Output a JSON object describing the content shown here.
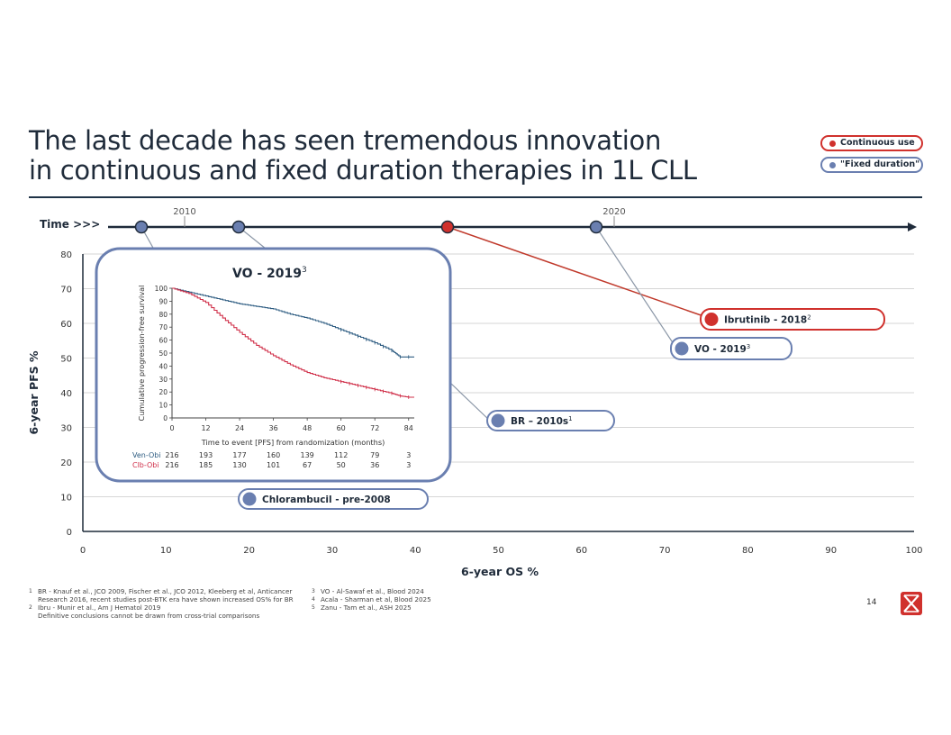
{
  "title": {
    "line1": "The last decade has seen tremendous innovation",
    "line2": "in continuous and fixed duration therapies in 1L CLL"
  },
  "legend": [
    {
      "label": "Continuous use",
      "color": "#d0312d"
    },
    {
      "label": "\"Fixed duration\"",
      "color": "#6a7fb0"
    }
  ],
  "timeline": {
    "label": "Time >>>",
    "ticks": [
      "2010",
      "2020"
    ],
    "markers": [
      {
        "name": "chlorambucil",
        "color": "#6a7fb0"
      },
      {
        "name": "br",
        "color": "#6a7fb0"
      },
      {
        "name": "ibrutinib",
        "color": "#d0312d"
      },
      {
        "name": "vo",
        "color": "#6a7fb0"
      }
    ]
  },
  "chart_data": {
    "type": "scatter",
    "xlabel": "6-year OS %",
    "ylabel": "6-year PFS %",
    "xlim": [
      0,
      100
    ],
    "ylim": [
      0,
      80
    ],
    "xticks": [
      0,
      10,
      20,
      30,
      40,
      50,
      60,
      70,
      80,
      90,
      100
    ],
    "yticks": [
      0,
      10,
      20,
      30,
      40,
      50,
      60,
      70,
      80
    ],
    "grid": true,
    "points": [
      {
        "label": "Chlorambucil - pre-2008",
        "sup": "",
        "color": "#6a7fb0",
        "x": 19.5,
        "y": 9.5
      },
      {
        "label": "BR – 2010s",
        "sup": "1",
        "color": "#6a7fb0",
        "x": 50,
        "y": 32.5
      },
      {
        "label": "VO - 2019",
        "sup": "3",
        "color": "#6a7fb0",
        "x": 71.5,
        "y": 52.5
      },
      {
        "label": "Ibrutinib - 2018",
        "sup": "2",
        "color": "#d0312d",
        "x": 75.5,
        "y": 61
      }
    ],
    "inset": {
      "title": "VO - 2019",
      "title_sup": "3",
      "ylabel": "Cumulative progression-free survival",
      "xlabel": "Time to event [PFS] from randomization (months)",
      "xticks": [
        "0",
        "12",
        "24",
        "36",
        "48",
        "60",
        "72",
        "84"
      ],
      "yticks": [
        "0",
        "10",
        "20",
        "30",
        "40",
        "50",
        "60",
        "70",
        "80",
        "90",
        "100"
      ],
      "series": [
        {
          "name": "Ven-Obi",
          "color": "#2f5d82",
          "risk": [
            "216",
            "193",
            "177",
            "160",
            "139",
            "112",
            "79",
            "3"
          ],
          "curve": [
            [
              0,
              100
            ],
            [
              6,
              97
            ],
            [
              12,
              94
            ],
            [
              18,
              91
            ],
            [
              24,
              88
            ],
            [
              30,
              86
            ],
            [
              36,
              84
            ],
            [
              42,
              80
            ],
            [
              48,
              77
            ],
            [
              54,
              73
            ],
            [
              60,
              68
            ],
            [
              66,
              63
            ],
            [
              72,
              58
            ],
            [
              78,
              52
            ],
            [
              81,
              47
            ],
            [
              84,
              47
            ],
            [
              86,
              47
            ]
          ]
        },
        {
          "name": "Clb-Obi",
          "color": "#d0304a",
          "risk": [
            "216",
            "185",
            "130",
            "101",
            "67",
            "50",
            "36",
            "3"
          ],
          "curve": [
            [
              0,
              100
            ],
            [
              6,
              96
            ],
            [
              12,
              89
            ],
            [
              18,
              77
            ],
            [
              24,
              66
            ],
            [
              30,
              56
            ],
            [
              36,
              48
            ],
            [
              42,
              41
            ],
            [
              48,
              35
            ],
            [
              54,
              31
            ],
            [
              60,
              28
            ],
            [
              66,
              25
            ],
            [
              72,
              22
            ],
            [
              78,
              19
            ],
            [
              81,
              17
            ],
            [
              84,
              16
            ],
            [
              86,
              16
            ]
          ]
        }
      ]
    }
  },
  "footnotes": {
    "left": [
      {
        "sup": "1",
        "text": "BR - Knauf et al., JCO 2009, Fischer et al., JCO 2012, Kleeberg et al, Anticancer"
      },
      {
        "sup": "",
        "text": "Research 2016, recent studies post-BTK era have shown increased OS% for BR"
      },
      {
        "sup": "2",
        "text": "Ibru - Munir et al., Am J Hematol 2019"
      },
      {
        "sup": "",
        "text": "Definitive conclusions cannot be drawn from cross-trial comparisons"
      }
    ],
    "right": [
      {
        "sup": "3",
        "text": "VO - Al-Sawaf et al., Blood 2024"
      },
      {
        "sup": "4",
        "text": "Acala - Sharman et al, Blood 2025"
      },
      {
        "sup": "5",
        "text": "Zanu - Tam et al., ASH 2025"
      }
    ]
  },
  "page_number": "14"
}
